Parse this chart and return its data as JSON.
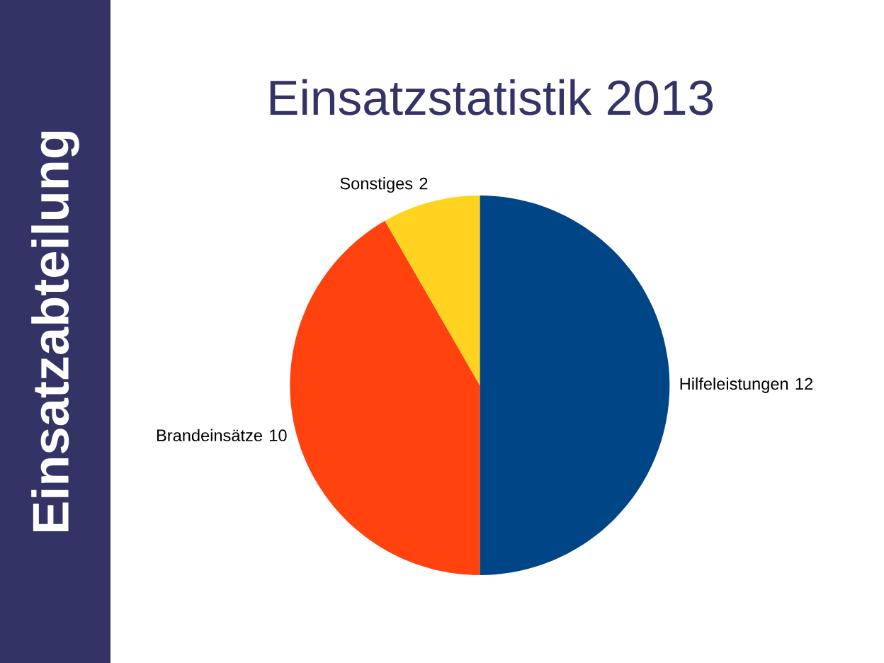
{
  "chart_data": {
    "type": "pie",
    "title": "Einsatzstatistik 2013",
    "annotations": [
      "Einsatzabteilung"
    ],
    "categories": [
      "Hilfeleistungen",
      "Brandeinsätze",
      "Sonstiges"
    ],
    "values": [
      12,
      10,
      2
    ],
    "colors": [
      "#004586",
      "#ff420e",
      "#ffd320"
    ],
    "data_labels": true,
    "legend": false
  }
}
